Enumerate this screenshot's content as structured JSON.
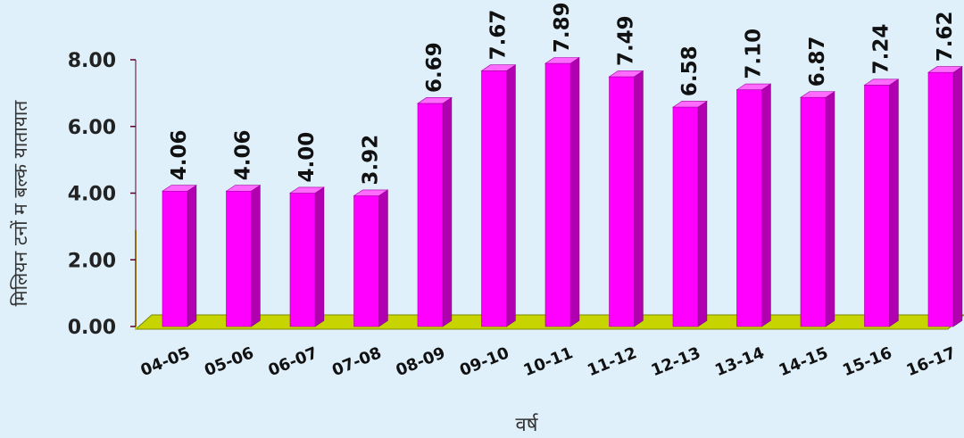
{
  "chart_data": {
    "type": "bar",
    "categories": [
      "04-05",
      "05-06",
      "06-07",
      "07-08",
      "08-09",
      "09-10",
      "10-11",
      "11-12",
      "12-13",
      "13-14",
      "14-15",
      "15-16",
      "16-17"
    ],
    "values": [
      4.06,
      4.06,
      4.0,
      3.92,
      6.69,
      7.67,
      7.89,
      7.49,
      6.58,
      7.1,
      6.87,
      7.24,
      7.62
    ],
    "data_labels": [
      "4.06",
      "4.06",
      "4.00",
      "3.92",
      "6.69",
      "7.67",
      "7.89",
      "7.49",
      "6.58",
      "7.10",
      "6.87",
      "7.24",
      "7.62"
    ],
    "y_ticks": [
      "0.00",
      "2.00",
      "4.00",
      "6.00",
      "8.00"
    ],
    "title": "",
    "xlabel": "वर्ष",
    "ylabel": "मिलियन टनों म बल्क यातायात",
    "ylim": [
      0,
      8
    ],
    "grid": false,
    "legend": "none",
    "colors": {
      "bar_front": "#ff00ff",
      "bar_side": "#b000b0",
      "bar_top": "#ff6aff",
      "floor": "#c8d400",
      "background": "#dff0fb",
      "axis": "#5a0033"
    }
  }
}
